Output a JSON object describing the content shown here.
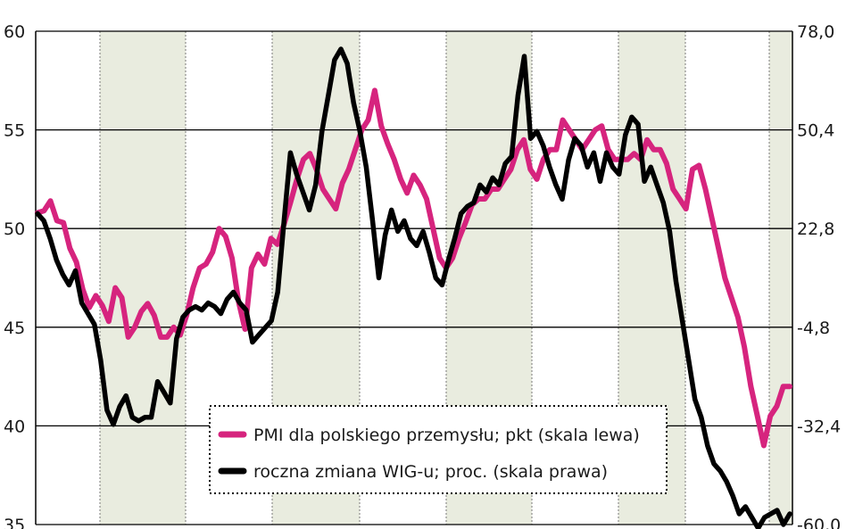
{
  "chart_data": {
    "type": "line",
    "title": "",
    "xlabel": "",
    "ylabel": "",
    "ylim_left": [
      35,
      60
    ],
    "ylim_right": [
      -60.0,
      78.0
    ],
    "yticks_left": [
      "60",
      "55",
      "50",
      "45",
      "40",
      "35"
    ],
    "yticks_right": [
      "78,0",
      "50,4",
      "22,8",
      "-4,8",
      "-32,4",
      "-60,0"
    ],
    "grid": true,
    "shaded_bands": "alternating years",
    "legend": {
      "placement": "bottom-right",
      "entries": [
        {
          "label": "PMI dla polskiego przemysłu; pkt (skala lewa)",
          "color": "#d6247e"
        },
        {
          "label": "roczna zmiana WIG-u; proc. (skala prawa)",
          "color": "#000000"
        }
      ]
    },
    "series": [
      {
        "axis": "left",
        "color": "#d6247e",
        "values": [
          50.8,
          50.9,
          51.4,
          50.4,
          50.3,
          49.0,
          48.3,
          46.9,
          46.0,
          46.6,
          46.1,
          45.3,
          47.0,
          46.5,
          44.5,
          45.0,
          45.8,
          46.2,
          45.6,
          44.5,
          44.5,
          45.0,
          44.6,
          45.6,
          47.0,
          48.0,
          48.2,
          48.8,
          50.0,
          49.6,
          48.5,
          46.3,
          44.9,
          48.0,
          48.7,
          48.2,
          49.5,
          49.2,
          50.2,
          51.3,
          52.5,
          53.5,
          53.8,
          53.0,
          52.0,
          51.5,
          51.0,
          52.3,
          53.0,
          54.0,
          55.0,
          55.5,
          57.0,
          55.2,
          54.3,
          53.5,
          52.5,
          51.8,
          52.7,
          52.2,
          51.5,
          50.0,
          48.5,
          48.0,
          48.5,
          49.5,
          50.3,
          51.2,
          51.5,
          51.5,
          52.0,
          52.0,
          52.5,
          53.0,
          54.0,
          54.5,
          53.0,
          52.5,
          53.5,
          54.0,
          54.0,
          55.5,
          55.0,
          54.5,
          54.0,
          54.5,
          55.0,
          55.2,
          54.0,
          53.5,
          53.5,
          53.5,
          53.8,
          53.5,
          54.5,
          54.0,
          54.0,
          53.3,
          52.0,
          51.5,
          51.0,
          53.0,
          53.2,
          52.0,
          50.5,
          49.0,
          47.5,
          46.5,
          45.5,
          44.0,
          42.0,
          40.5,
          39.0,
          40.5,
          41.0,
          42.0,
          42.0
        ]
      },
      {
        "axis": "right",
        "color": "#000000",
        "values": [
          27.0,
          25.0,
          20.0,
          14.0,
          10.0,
          7.0,
          11.0,
          2.0,
          -1.0,
          -4.0,
          -14.0,
          -28.0,
          -32.0,
          -27.0,
          -24.0,
          -30.0,
          -31.0,
          -30.0,
          -30.0,
          -20.0,
          -23.0,
          -26.0,
          -8.0,
          -2.0,
          0.0,
          1.0,
          0.0,
          2.0,
          1.0,
          -1.0,
          3.0,
          5.0,
          2.0,
          0.0,
          -9.0,
          -7.0,
          -5.0,
          -3.0,
          5.0,
          25.0,
          44.0,
          38.0,
          33.0,
          28.0,
          35.0,
          50.0,
          60.0,
          70.0,
          73.0,
          69.0,
          58.0,
          50.0,
          40.0,
          25.0,
          9.0,
          21.0,
          28.0,
          22.0,
          25.0,
          20.0,
          18.0,
          22.0,
          16.0,
          9.0,
          7.0,
          14.0,
          20.0,
          27.0,
          29.0,
          30.0,
          35.0,
          33.0,
          37.0,
          35.0,
          41.0,
          43.0,
          60.0,
          71.0,
          48.0,
          50.0,
          46.0,
          40.0,
          35.0,
          31.0,
          42.0,
          48.0,
          46.0,
          40.0,
          44.0,
          36.0,
          44.0,
          40.0,
          38.0,
          49.0,
          54.0,
          52.0,
          36.0,
          40.0,
          35.0,
          30.0,
          22.0,
          8.0,
          -3.0,
          -14.0,
          -25.0,
          -30.0,
          -38.0,
          -43.0,
          -45.0,
          -48.0,
          -52.0,
          -57.0,
          -55.0,
          -58.0,
          -61.0,
          -58.0,
          -57.0,
          -56.0,
          -60.0,
          -57.0
        ]
      }
    ]
  }
}
